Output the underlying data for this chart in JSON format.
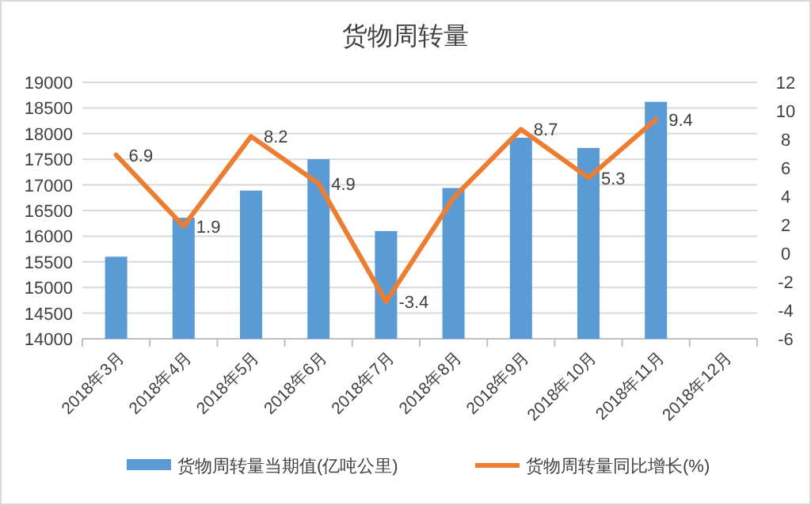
{
  "chart_data": {
    "type": "bar",
    "title": "货物周转量",
    "categories": [
      "2018年3月",
      "2018年4月",
      "2018年5月",
      "2018年6月",
      "2018年7月",
      "2018年8月",
      "2018年9月",
      "2018年10月",
      "2018年11月",
      "2018年12月"
    ],
    "series": [
      {
        "name": "货物周转量当期值(亿吨公里)",
        "color": "#5b9bd5",
        "values": [
          15600,
          16360,
          16890,
          17500,
          16100,
          16940,
          17920,
          17720,
          18620,
          null
        ]
      },
      {
        "name": "货物周转量同比增长(%)",
        "type": "line",
        "axis": "y2",
        "color": "#ed7d31",
        "values": [
          6.9,
          1.9,
          8.2,
          4.9,
          -3.4,
          3.9,
          8.7,
          5.3,
          9.4,
          null
        ],
        "value_labels": [
          "6.9",
          "1.9",
          "8.2",
          "4.9",
          "-3.4",
          null,
          "8.7",
          "5.3",
          "9.4",
          null
        ]
      }
    ],
    "ylim": [
      14000,
      19000
    ],
    "yticks": [
      14000,
      14500,
      15000,
      15500,
      16000,
      16500,
      17000,
      17500,
      18000,
      18500,
      19000
    ],
    "y2lim": [
      -6,
      12
    ],
    "y2ticks": [
      -6,
      -4,
      -2,
      0,
      2,
      4,
      6,
      8,
      10,
      12
    ],
    "grid": "y",
    "legend": "bottom"
  }
}
